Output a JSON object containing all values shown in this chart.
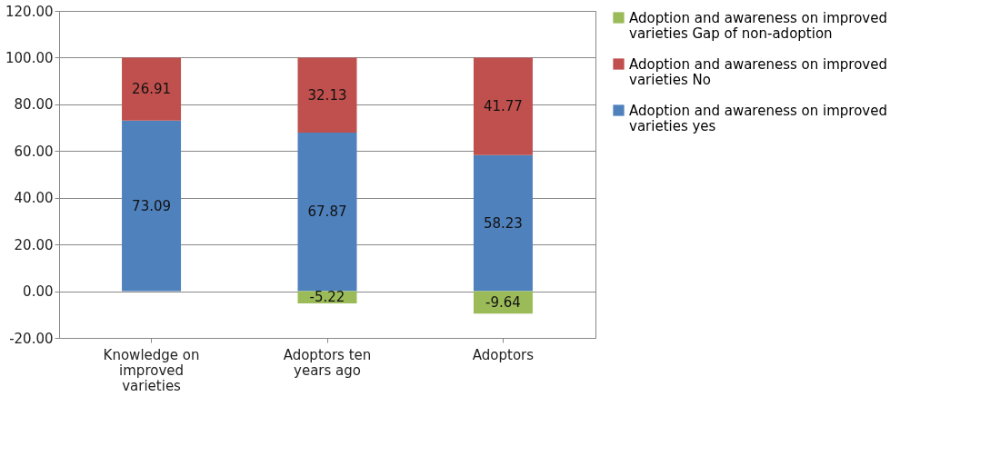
{
  "chart_data": {
    "type": "bar",
    "stacked": true,
    "categories": [
      "Knowledge on improved varieties",
      "Adoptors ten years ago",
      "Adoptors"
    ],
    "series": [
      {
        "name": "Adoption and awareness on improved varieties yes",
        "color": "#4f81bd",
        "values": [
          73.09,
          67.87,
          58.23
        ]
      },
      {
        "name": "Adoption and awareness on improved varieties No",
        "color": "#c0504d",
        "values": [
          26.91,
          32.13,
          41.77
        ]
      },
      {
        "name": "Adoption and awareness on improved varieties Gap of non-adoption",
        "color": "#9bbb59",
        "values": [
          null,
          -5.22,
          -9.64
        ]
      }
    ],
    "ylim": [
      -20,
      120
    ],
    "yticks": [
      {
        "value": -20,
        "label": "-20.00"
      },
      {
        "value": 0,
        "label": "0.00"
      },
      {
        "value": 20,
        "label": "20.00"
      },
      {
        "value": 40,
        "label": "40.00"
      },
      {
        "value": 60,
        "label": "60.00"
      },
      {
        "value": 80,
        "label": "80.00"
      },
      {
        "value": 100,
        "label": "100.00"
      },
      {
        "value": 120,
        "label": "120.00"
      }
    ],
    "grid": "y",
    "legend": "right",
    "data_labels": true
  }
}
